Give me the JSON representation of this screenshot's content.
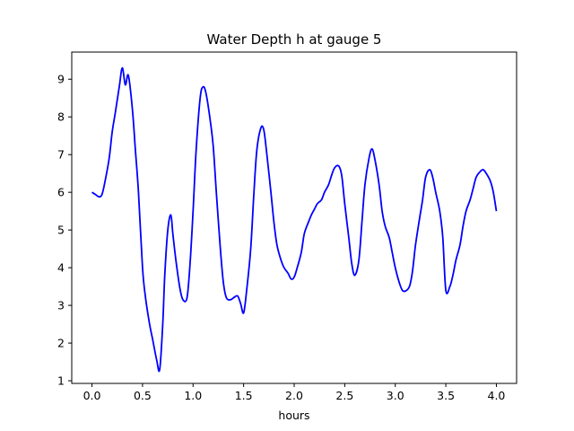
{
  "chart_data": {
    "type": "line",
    "title": "Water Depth h at gauge 5",
    "xlabel": "hours",
    "ylabel": "",
    "xlim": [
      -0.2,
      4.2
    ],
    "ylim": [
      0.93,
      9.72
    ],
    "xticks": [
      0.0,
      0.5,
      1.0,
      1.5,
      2.0,
      2.5,
      3.0,
      3.5,
      4.0
    ],
    "xtick_labels": [
      "0.0",
      "0.5",
      "1.0",
      "1.5",
      "2.0",
      "2.5",
      "3.0",
      "3.5",
      "4.0"
    ],
    "yticks": [
      1,
      2,
      3,
      4,
      5,
      6,
      7,
      8,
      9
    ],
    "ytick_labels": [
      "1",
      "2",
      "3",
      "4",
      "5",
      "6",
      "7",
      "8",
      "9"
    ],
    "grid": false,
    "legend": "none",
    "series": [
      {
        "color": "#0000ff",
        "x": [
          0.0,
          0.03,
          0.07,
          0.1,
          0.13,
          0.17,
          0.2,
          0.23,
          0.27,
          0.3,
          0.33,
          0.36,
          0.4,
          0.43,
          0.46,
          0.5,
          0.53,
          0.57,
          0.6,
          0.64,
          0.67,
          0.7,
          0.72,
          0.75,
          0.78,
          0.8,
          0.83,
          0.87,
          0.9,
          0.94,
          0.97,
          1.0,
          1.03,
          1.07,
          1.1,
          1.13,
          1.17,
          1.2,
          1.23,
          1.27,
          1.3,
          1.33,
          1.37,
          1.4,
          1.44,
          1.47,
          1.5,
          1.53,
          1.57,
          1.6,
          1.63,
          1.67,
          1.7,
          1.73,
          1.77,
          1.8,
          1.83,
          1.87,
          1.9,
          1.94,
          1.97,
          2.0,
          2.03,
          2.07,
          2.1,
          2.14,
          2.17,
          2.2,
          2.23,
          2.27,
          2.3,
          2.34,
          2.37,
          2.4,
          2.44,
          2.47,
          2.5,
          2.54,
          2.57,
          2.6,
          2.64,
          2.67,
          2.7,
          2.74,
          2.77,
          2.8,
          2.84,
          2.87,
          2.9,
          2.94,
          2.97,
          3.0,
          3.04,
          3.07,
          3.1,
          3.14,
          3.17,
          3.2,
          3.24,
          3.27,
          3.3,
          3.34,
          3.37,
          3.4,
          3.44,
          3.47,
          3.5,
          3.54,
          3.57,
          3.6,
          3.64,
          3.67,
          3.7,
          3.74,
          3.77,
          3.8,
          3.84,
          3.87,
          3.9,
          3.94,
          3.97,
          4.0
        ],
        "y": [
          6.0,
          5.95,
          5.88,
          5.95,
          6.3,
          6.9,
          7.6,
          8.1,
          8.8,
          9.3,
          8.85,
          9.1,
          8.2,
          7.1,
          6.0,
          4.0,
          3.2,
          2.5,
          2.1,
          1.55,
          1.3,
          2.5,
          3.8,
          5.0,
          5.4,
          4.9,
          4.2,
          3.45,
          3.15,
          3.2,
          4.1,
          5.5,
          7.1,
          8.5,
          8.8,
          8.6,
          7.9,
          7.2,
          6.0,
          4.5,
          3.6,
          3.2,
          3.15,
          3.2,
          3.25,
          3.05,
          2.8,
          3.4,
          4.5,
          5.9,
          7.1,
          7.7,
          7.65,
          7.0,
          6.0,
          5.2,
          4.6,
          4.2,
          4.0,
          3.85,
          3.7,
          3.75,
          4.0,
          4.4,
          4.9,
          5.2,
          5.4,
          5.55,
          5.7,
          5.8,
          6.0,
          6.2,
          6.45,
          6.65,
          6.7,
          6.45,
          5.7,
          4.8,
          4.1,
          3.8,
          4.2,
          5.2,
          6.2,
          6.9,
          7.15,
          6.85,
          6.2,
          5.5,
          5.1,
          4.8,
          4.4,
          4.0,
          3.6,
          3.4,
          3.38,
          3.5,
          3.9,
          4.6,
          5.3,
          5.8,
          6.4,
          6.6,
          6.4,
          6.0,
          5.5,
          4.8,
          3.4,
          3.5,
          3.8,
          4.2,
          4.6,
          5.1,
          5.5,
          5.8,
          6.1,
          6.4,
          6.55,
          6.6,
          6.5,
          6.3,
          6.0,
          5.5
        ],
        "name": ""
      }
    ]
  }
}
